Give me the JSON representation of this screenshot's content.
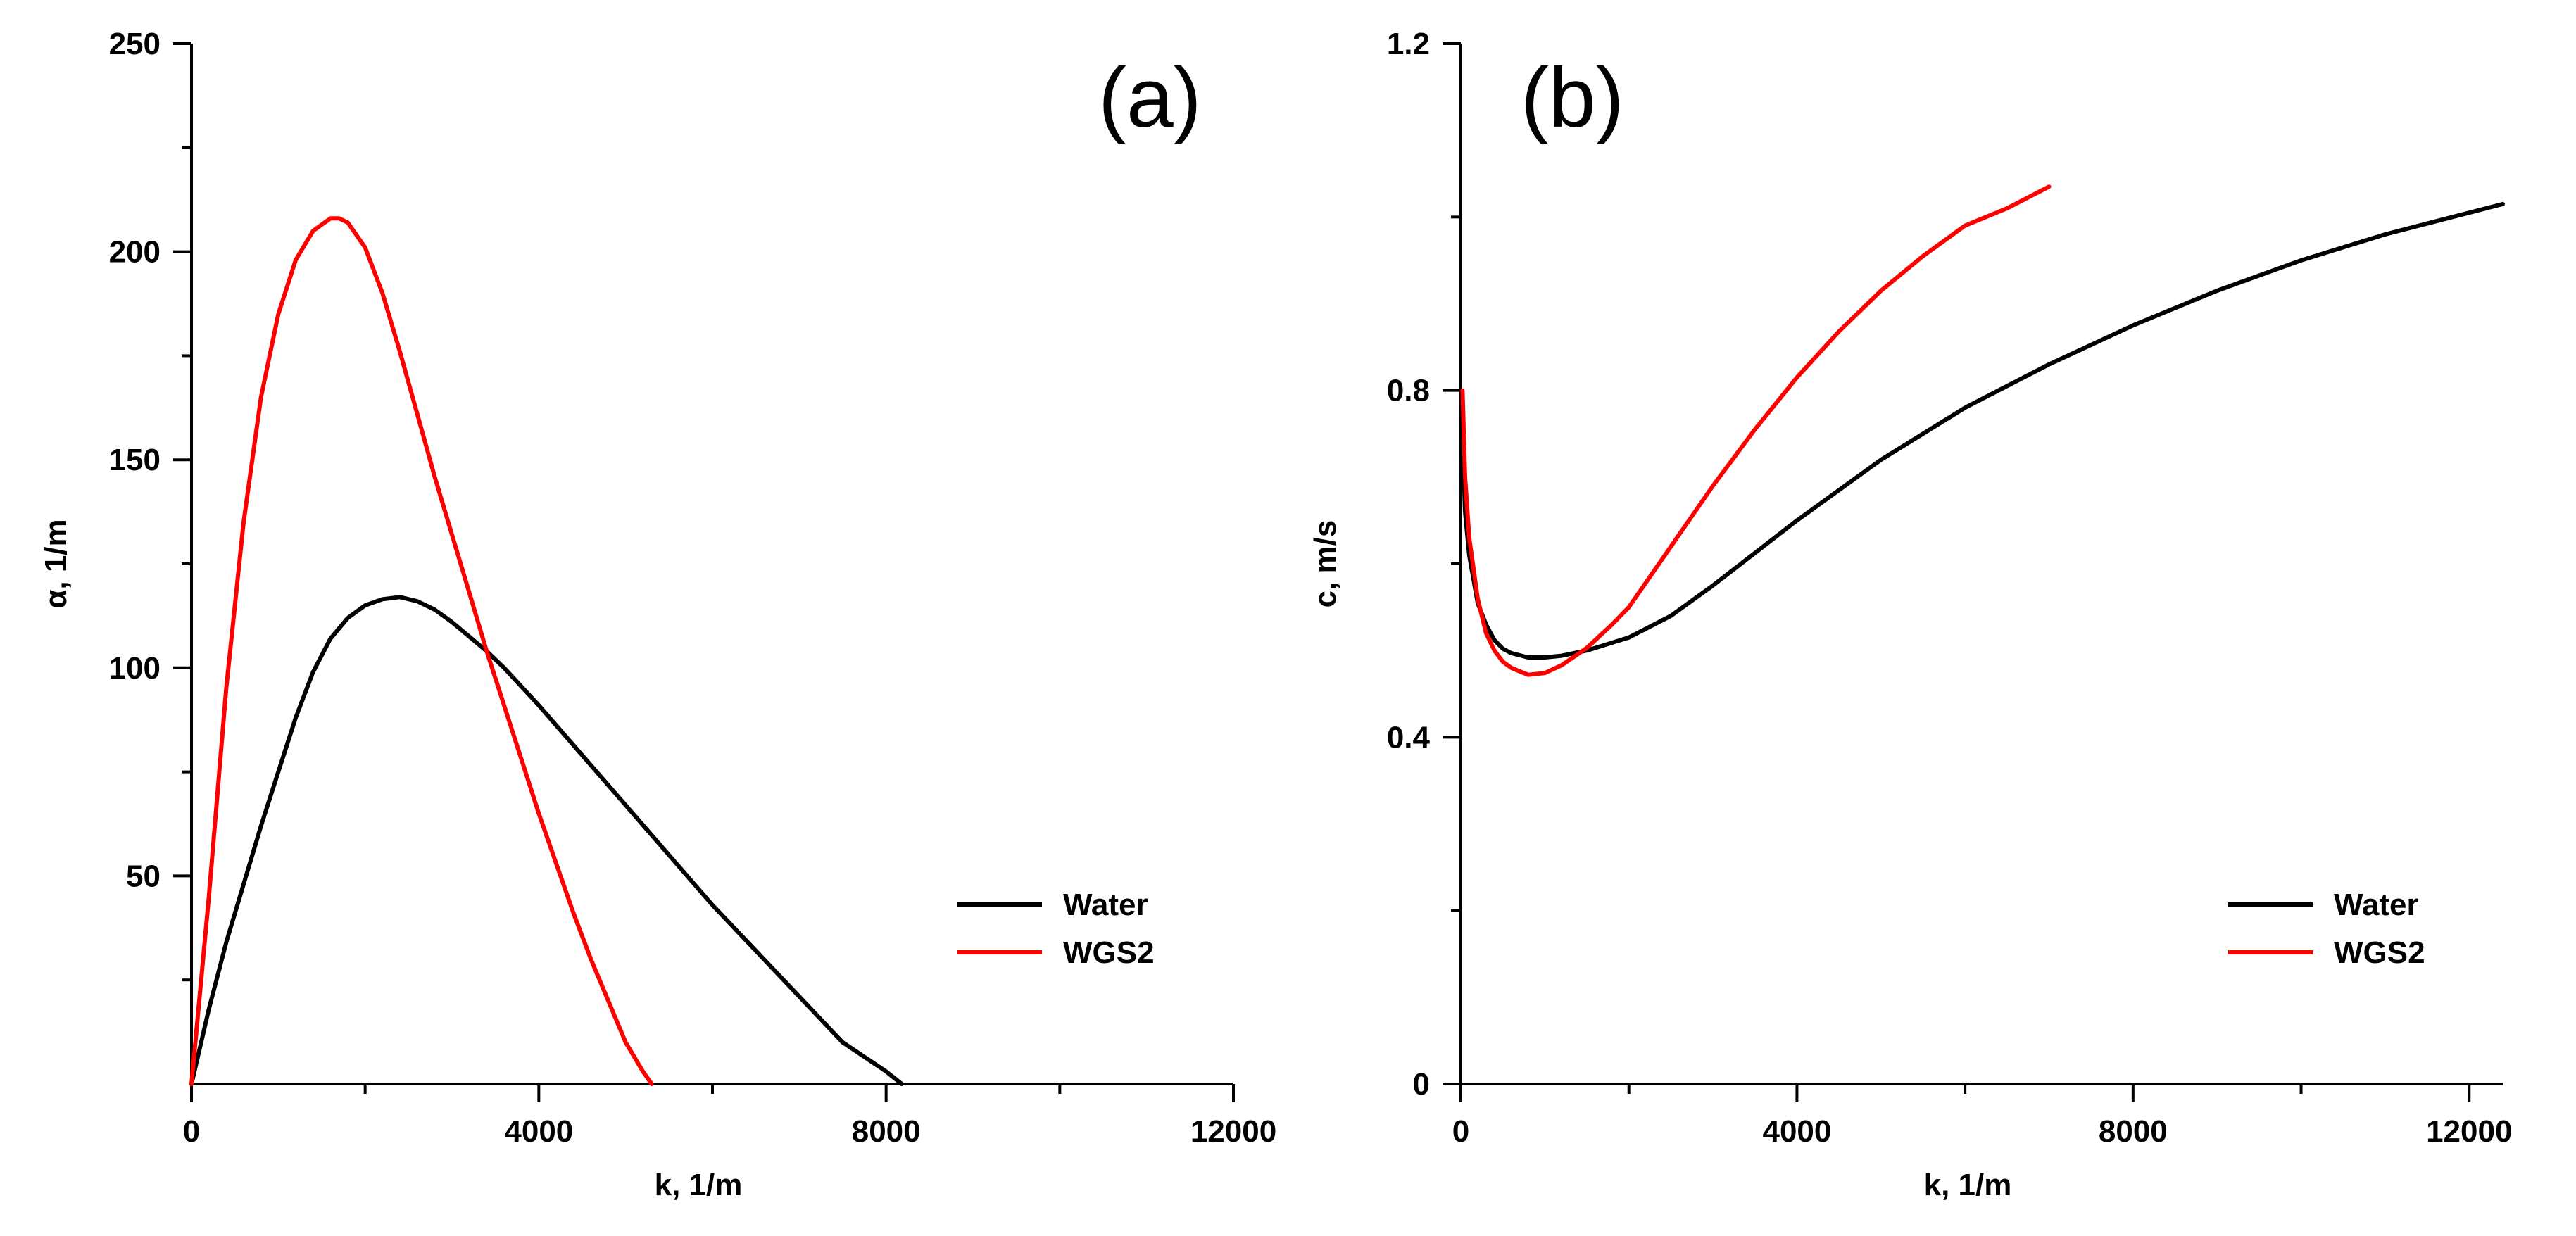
{
  "chart_data": [
    {
      "type": "line",
      "id": "a",
      "panel_label": "(a)",
      "xlabel": "k, 1/m",
      "ylabel": "α, 1/m",
      "xlim": [
        0,
        12000
      ],
      "ylim": [
        0,
        250
      ],
      "x_major_ticks": [
        0,
        4000,
        8000,
        12000
      ],
      "x_minor_ticks": [
        2000,
        6000,
        10000
      ],
      "y_major_ticks": [
        50,
        100,
        150,
        200,
        250
      ],
      "y_minor_ticks": [
        25,
        75,
        125,
        175,
        225
      ],
      "legend_position": "bottom-right",
      "series": [
        {
          "name": "Water",
          "color": "#000000",
          "x": [
            0,
            200,
            400,
            600,
            800,
            1000,
            1200,
            1400,
            1600,
            1800,
            2000,
            2200,
            2400,
            2600,
            2800,
            3000,
            3400,
            3600,
            4000,
            4500,
            5000,
            5500,
            6000,
            6500,
            7000,
            7500,
            8000,
            8180
          ],
          "y": [
            0,
            18,
            34,
            48,
            62,
            75,
            88,
            99,
            107,
            112,
            115,
            116.5,
            117,
            116,
            114,
            111,
            104,
            100,
            91,
            79,
            67,
            55,
            43,
            32,
            21,
            10,
            3,
            0
          ]
        },
        {
          "name": "WGS2",
          "color": "#ff0000",
          "x": [
            0,
            200,
            400,
            600,
            800,
            1000,
            1200,
            1400,
            1600,
            1700,
            1800,
            2000,
            2200,
            2400,
            2600,
            2800,
            3000,
            3200,
            3400,
            3600,
            3800,
            4000,
            4200,
            4400,
            4600,
            4800,
            5000,
            5200,
            5300
          ],
          "y": [
            0,
            45,
            95,
            135,
            165,
            185,
            198,
            205,
            208,
            208,
            207,
            201,
            190,
            176,
            161,
            146,
            132,
            118,
            104,
            91,
            78,
            65,
            53,
            41,
            30,
            20,
            10,
            3,
            0
          ]
        }
      ]
    },
    {
      "type": "line",
      "id": "b",
      "panel_label": "(b)",
      "xlabel": "k, 1/m",
      "ylabel": "c, m/s",
      "xlim": [
        0,
        12400
      ],
      "ylim": [
        0,
        1.2
      ],
      "x_major_ticks": [
        0,
        4000,
        8000,
        12000
      ],
      "x_minor_ticks": [
        2000,
        6000,
        10000
      ],
      "y_major_ticks": [
        0,
        0.4,
        0.8,
        1.2
      ],
      "y_minor_ticks": [
        0.2,
        0.6,
        1.0
      ],
      "legend_position": "bottom-right",
      "series": [
        {
          "name": "Water",
          "color": "#000000",
          "x": [
            20,
            50,
            100,
            200,
            300,
            400,
            500,
            600,
            800,
            1000,
            1200,
            1500,
            2000,
            2500,
            3000,
            4000,
            5000,
            6000,
            7000,
            8000,
            9000,
            10000,
            11000,
            12000,
            12400
          ],
          "y": [
            0.75,
            0.66,
            0.61,
            0.555,
            0.53,
            0.512,
            0.502,
            0.497,
            0.492,
            0.492,
            0.494,
            0.5,
            0.515,
            0.54,
            0.575,
            0.65,
            0.72,
            0.78,
            0.83,
            0.875,
            0.915,
            0.95,
            0.98,
            1.005,
            1.015
          ]
        },
        {
          "name": "WGS2",
          "color": "#ff0000",
          "x": [
            20,
            50,
            100,
            200,
            300,
            400,
            500,
            600,
            800,
            1000,
            1200,
            1500,
            1800,
            2000,
            2500,
            3000,
            3500,
            4000,
            4500,
            5000,
            5500,
            6000,
            6500,
            7000
          ],
          "y": [
            0.8,
            0.7,
            0.63,
            0.56,
            0.52,
            0.5,
            0.487,
            0.48,
            0.472,
            0.474,
            0.483,
            0.503,
            0.53,
            0.55,
            0.62,
            0.69,
            0.755,
            0.815,
            0.868,
            0.915,
            0.955,
            0.99,
            1.01,
            1.035
          ]
        }
      ]
    }
  ]
}
